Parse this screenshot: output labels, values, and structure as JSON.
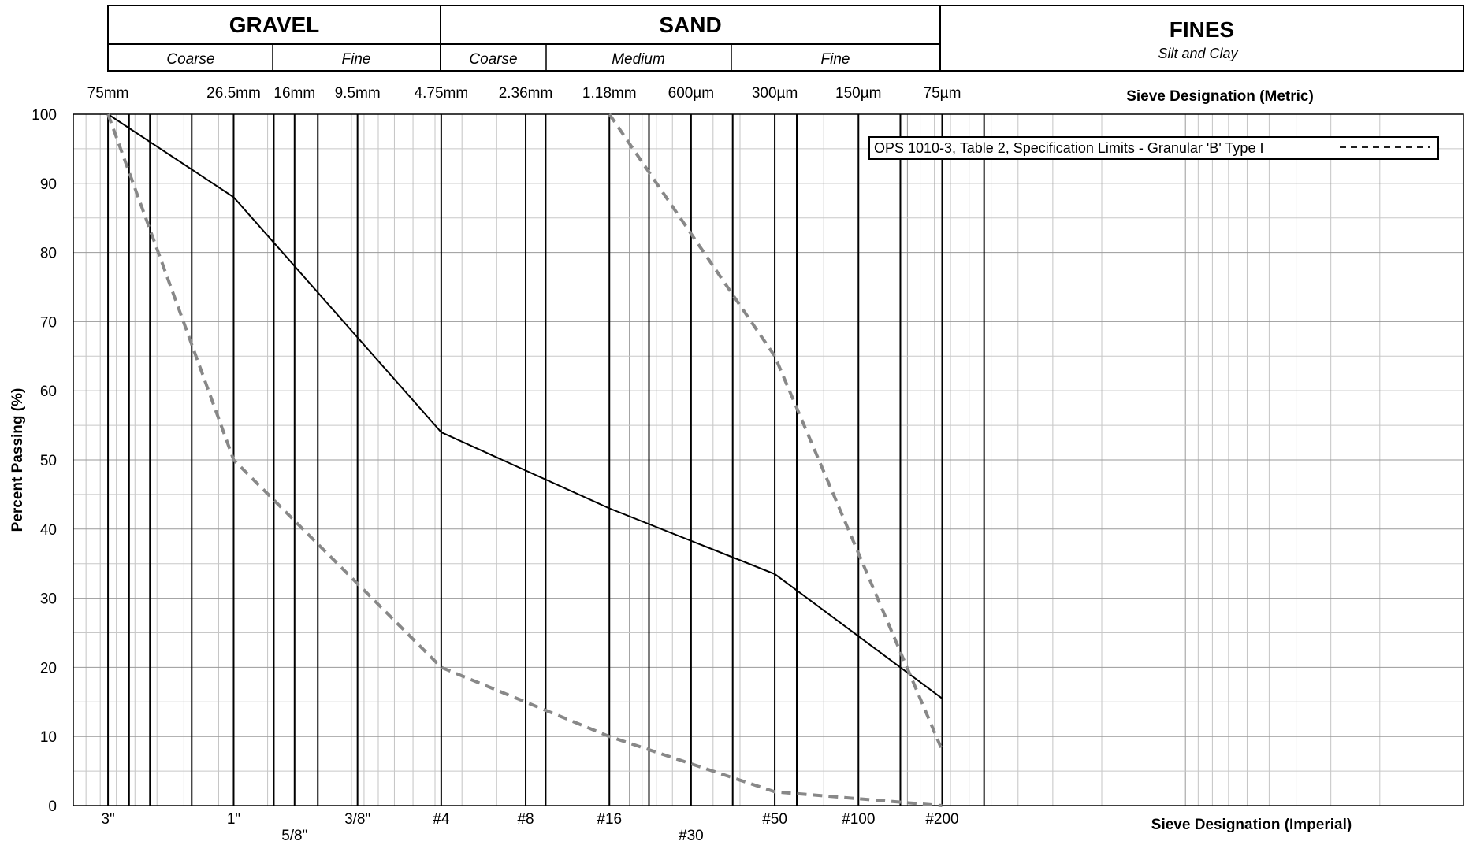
{
  "header": {
    "gravel": {
      "label": "GRAVEL",
      "coarse": "Coarse",
      "fine": "Fine"
    },
    "sand": {
      "label": "SAND",
      "coarse": "Coarse",
      "medium": "Medium",
      "fine": "Fine"
    },
    "fines": {
      "label": "FINES",
      "sublabel": "Silt and Clay"
    }
  },
  "chart_data": {
    "type": "line",
    "x_scale": "log",
    "x_unit": "mm",
    "x_range_mm": [
      0.001,
      100
    ],
    "x_direction": "decreasing",
    "ylim": [
      0,
      100
    ],
    "ylabel": "Percent Passing (%)",
    "yticks": [
      0,
      10,
      20,
      30,
      40,
      50,
      60,
      70,
      80,
      90,
      100
    ],
    "grid": true,
    "metric_axis": {
      "title": "Sieve Designation (Metric)",
      "labels": [
        "75mm",
        "26.5mm",
        "16mm",
        "9.5mm",
        "4.75mm",
        "2.36mm",
        "1.18mm",
        "600µm",
        "300µm",
        "150µm",
        "75µm"
      ]
    },
    "imperial_axis": {
      "title": "Sieve Designation (Imperial)",
      "labels": [
        "3\"",
        "1\"",
        "5/8\"",
        "3/8\"",
        "#4",
        "#8",
        "#16",
        "#30",
        "#50",
        "#100",
        "#200"
      ]
    },
    "sieve_sizes_mm": [
      75,
      63,
      53,
      37.5,
      26.5,
      19,
      16,
      13.2,
      9.5,
      4.75,
      2.36,
      2,
      1.18,
      0.85,
      0.6,
      0.425,
      0.3,
      0.25,
      0.15,
      0.106,
      0.075,
      0.053
    ],
    "series": [
      {
        "name": "",
        "style": "solid",
        "color": "#000000",
        "points": [
          [
            75,
            100
          ],
          [
            26.5,
            88
          ],
          [
            4.75,
            54
          ],
          [
            1.18,
            43
          ],
          [
            0.3,
            33.5
          ],
          [
            0.075,
            15.5
          ]
        ]
      },
      {
        "name": "OPS 1010-3, Table 2, Specification Limits - Granular 'B'  Type I",
        "style": "dashed",
        "color": "#888888",
        "points": [
          [
            75,
            100
          ],
          [
            26.5,
            50
          ],
          [
            4.75,
            20
          ],
          [
            1.18,
            10
          ],
          [
            0.3,
            2
          ],
          [
            0.075,
            0
          ]
        ]
      },
      {
        "name": "",
        "style": "dashed",
        "color": "#888888",
        "points": [
          [
            1.18,
            100
          ],
          [
            0.3,
            65
          ],
          [
            0.075,
            8
          ]
        ]
      }
    ],
    "legend": {
      "position": "top-right",
      "entries": [
        "OPS 1010-3, Table 2, Specification Limits - Granular 'B'  Type I"
      ]
    }
  }
}
